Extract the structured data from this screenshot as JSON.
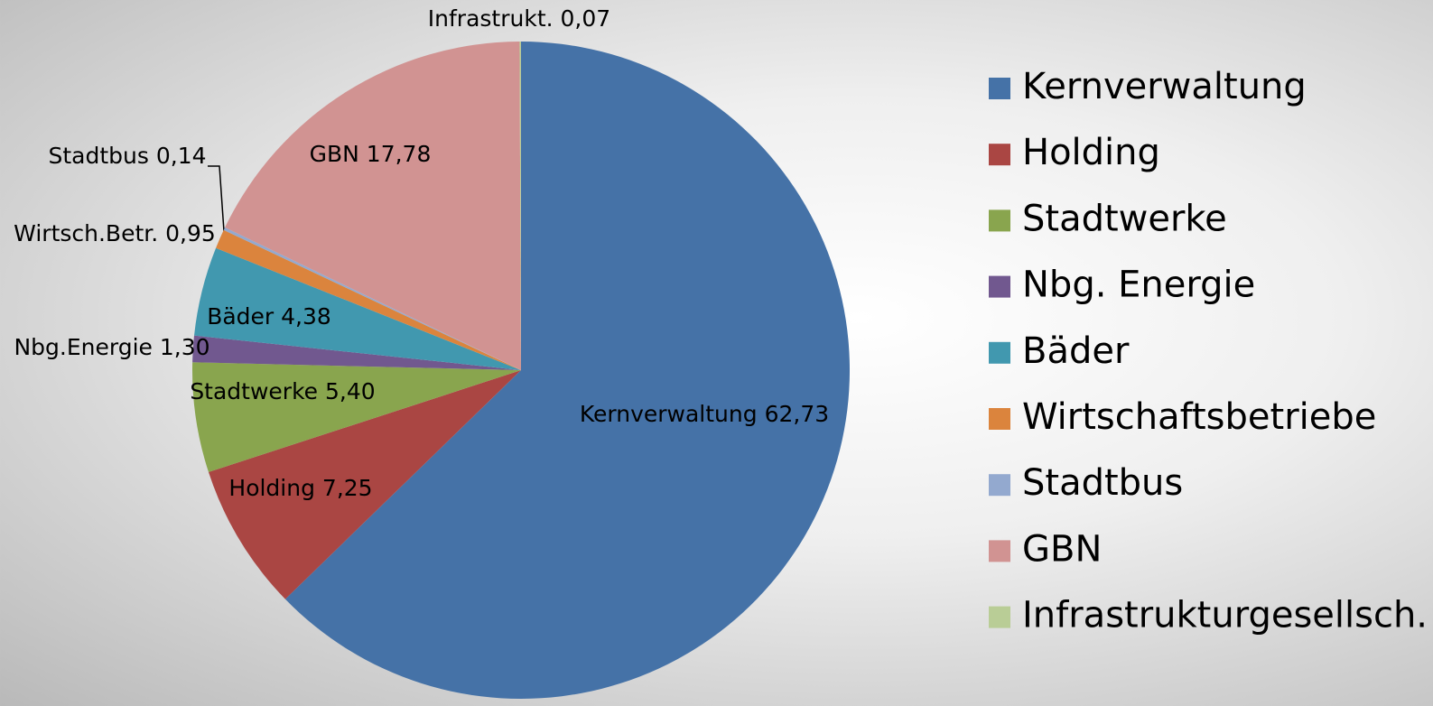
{
  "chart_data": {
    "type": "pie",
    "categories": [
      "Kernverwaltung",
      "Holding",
      "Stadtwerke",
      "Nbg. Energie",
      "Bäder",
      "Wirtschaftsbetriebe",
      "Stadtbus",
      "GBN",
      "Infrastrukturgesellsch."
    ],
    "values": [
      62.73,
      7.25,
      5.4,
      1.3,
      4.38,
      0.95,
      0.14,
      17.78,
      0.07
    ],
    "label_names": [
      "Kernverwaltung",
      "Holding",
      "Stadtwerke",
      "Nbg.Energie",
      "Bäder",
      "Wirtsch.Betr.",
      "Stadtbus",
      "GBN",
      "Infrastrukt."
    ],
    "value_labels": [
      "62,73",
      "7,25",
      "5,40",
      "1,30",
      "4,38",
      "0,95",
      "0,14",
      "17,78",
      "0,07"
    ],
    "colors": [
      "#4572a7",
      "#aa4643",
      "#89a54e",
      "#71588f",
      "#4198af",
      "#db843d",
      "#93a9cf",
      "#d19392",
      "#b9cd96"
    ],
    "legend": "right"
  }
}
